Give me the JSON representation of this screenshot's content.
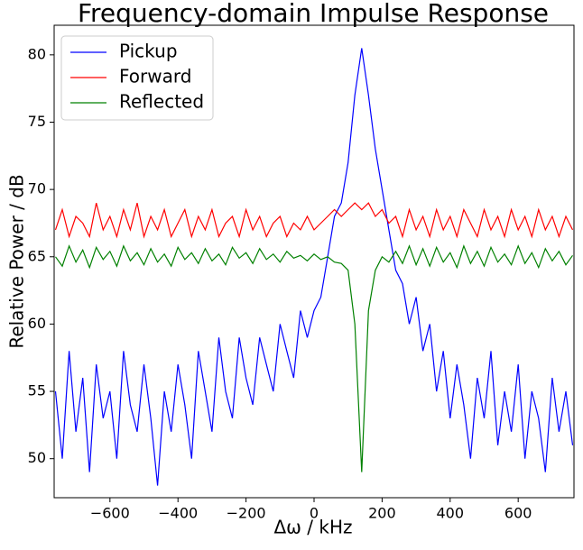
{
  "chart_data": {
    "type": "line",
    "title": "Frequency-domain Impulse Response",
    "xlabel": "Δω / kHz",
    "ylabel": "Relative Power / dB",
    "x": [
      -760,
      -740,
      -720,
      -700,
      -680,
      -660,
      -640,
      -620,
      -600,
      -580,
      -560,
      -540,
      -520,
      -500,
      -480,
      -460,
      -440,
      -420,
      -400,
      -380,
      -360,
      -340,
      -320,
      -300,
      -280,
      -260,
      -240,
      -220,
      -200,
      -180,
      -160,
      -140,
      -120,
      -100,
      -80,
      -60,
      -40,
      -20,
      0,
      20,
      40,
      60,
      80,
      100,
      120,
      140,
      160,
      180,
      200,
      220,
      240,
      260,
      280,
      300,
      320,
      340,
      360,
      380,
      400,
      420,
      440,
      460,
      480,
      500,
      520,
      540,
      560,
      580,
      600,
      620,
      640,
      660,
      680,
      700,
      720,
      740,
      760
    ],
    "series": [
      {
        "name": "Pickup",
        "color": "#0000ff",
        "values": [
          55,
          50,
          58,
          52,
          56,
          49,
          57,
          53,
          55,
          50,
          58,
          54,
          52,
          57,
          53,
          48,
          55,
          52,
          57,
          54,
          50,
          58,
          55,
          52,
          59,
          55,
          53,
          59,
          56,
          54,
          59,
          57,
          55,
          60,
          58,
          56,
          61,
          59,
          61,
          62,
          65,
          68,
          69,
          72,
          77,
          80.5,
          77,
          73,
          70,
          67,
          64,
          63,
          60,
          62,
          58,
          60,
          55,
          58,
          53,
          57,
          54,
          50,
          56,
          53,
          58,
          51,
          55,
          52,
          57,
          50,
          55,
          53,
          49,
          56,
          52,
          55,
          51
        ]
      },
      {
        "name": "Forward",
        "color": "#ff0000",
        "values": [
          67,
          68.5,
          66.5,
          68,
          67.5,
          66.5,
          69,
          67,
          68,
          66.5,
          68.5,
          67,
          69,
          66.5,
          68,
          67,
          68.5,
          66.5,
          67.5,
          68.5,
          66.5,
          68,
          67,
          68.5,
          66.5,
          67.5,
          68,
          66.5,
          68.5,
          67,
          68,
          66.5,
          67.5,
          68,
          66.5,
          67.5,
          67,
          68,
          67,
          67.5,
          68,
          68.5,
          68,
          68.5,
          69,
          68.5,
          69,
          68,
          68.5,
          67.5,
          68,
          66.5,
          68.5,
          67,
          68,
          66.5,
          68.5,
          67,
          68,
          66.5,
          68.5,
          67.5,
          66.5,
          68.5,
          67,
          68,
          66.5,
          68.5,
          67,
          68,
          66.5,
          68.5,
          67,
          68,
          66.5,
          68,
          67
        ]
      },
      {
        "name": "Reflected",
        "color": "#008000",
        "values": [
          65,
          64.3,
          65.8,
          64.6,
          65.5,
          64.2,
          65.7,
          64.8,
          65.4,
          64.3,
          65.8,
          64.7,
          65.3,
          64.4,
          65.6,
          64.6,
          65.2,
          64.3,
          65.7,
          64.8,
          65.3,
          64.5,
          65.6,
          64.7,
          65.2,
          64.4,
          65.7,
          64.9,
          65.3,
          64.5,
          65.6,
          64.8,
          65.2,
          64.6,
          65.4,
          64.9,
          65.1,
          64.7,
          65.2,
          64.8,
          65,
          64.6,
          64.5,
          64,
          60,
          49,
          61,
          64,
          65,
          64.6,
          65.4,
          64.5,
          65.8,
          64.4,
          65.6,
          64.3,
          65.7,
          64.6,
          65.3,
          64.2,
          65.8,
          64.5,
          65.4,
          64.3,
          65.7,
          64.6,
          65.2,
          64.4,
          65.8,
          64.5,
          65.3,
          64.2,
          65.6,
          64.7,
          65.4,
          64.4,
          65.1
        ]
      }
    ],
    "xlim": [
      -764,
      764
    ],
    "ylim": [
      47.1,
      82.2
    ],
    "xticks": [
      {
        "value": -600,
        "label": "−600"
      },
      {
        "value": -400,
        "label": "−400"
      },
      {
        "value": -200,
        "label": "−200"
      },
      0,
      200,
      400,
      600
    ],
    "yticks": [
      50,
      55,
      60,
      65,
      70,
      75,
      80
    ],
    "legend": "upper left"
  }
}
